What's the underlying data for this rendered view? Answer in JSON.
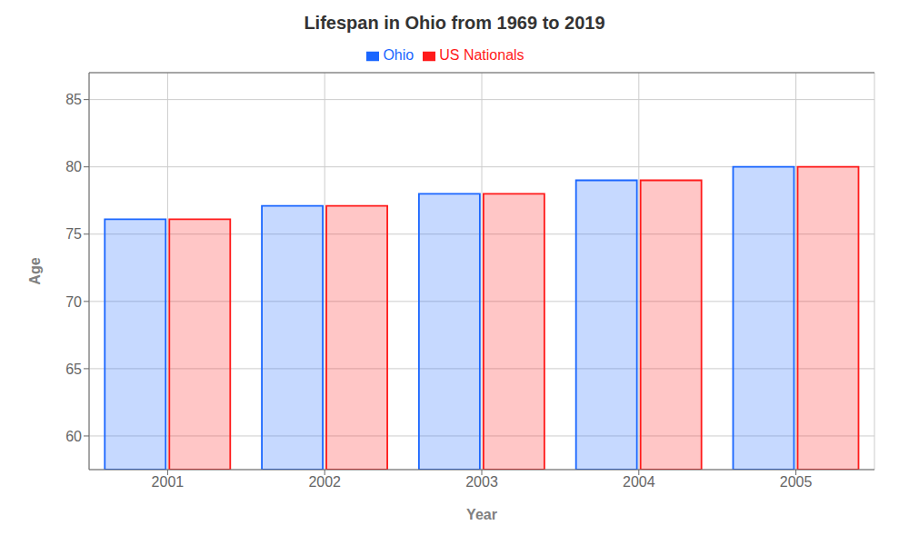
{
  "chart_data": {
    "type": "bar",
    "title": "Lifespan in Ohio from 1969 to 2019",
    "xlabel": "Year",
    "ylabel": "Age",
    "categories": [
      "2001",
      "2002",
      "2003",
      "2004",
      "2005"
    ],
    "series": [
      {
        "name": "Ohio",
        "color": "#1a66ff",
        "values": [
          76.1,
          77.1,
          78.0,
          79.0,
          80.0
        ]
      },
      {
        "name": "US Nationals",
        "color": "#ff1a1a",
        "values": [
          76.1,
          77.1,
          78.0,
          79.0,
          80.0
        ]
      }
    ],
    "ylim": [
      57.5,
      87
    ],
    "yticks": [
      60,
      65,
      70,
      75,
      80,
      85
    ],
    "grid": true,
    "legend": "top"
  }
}
